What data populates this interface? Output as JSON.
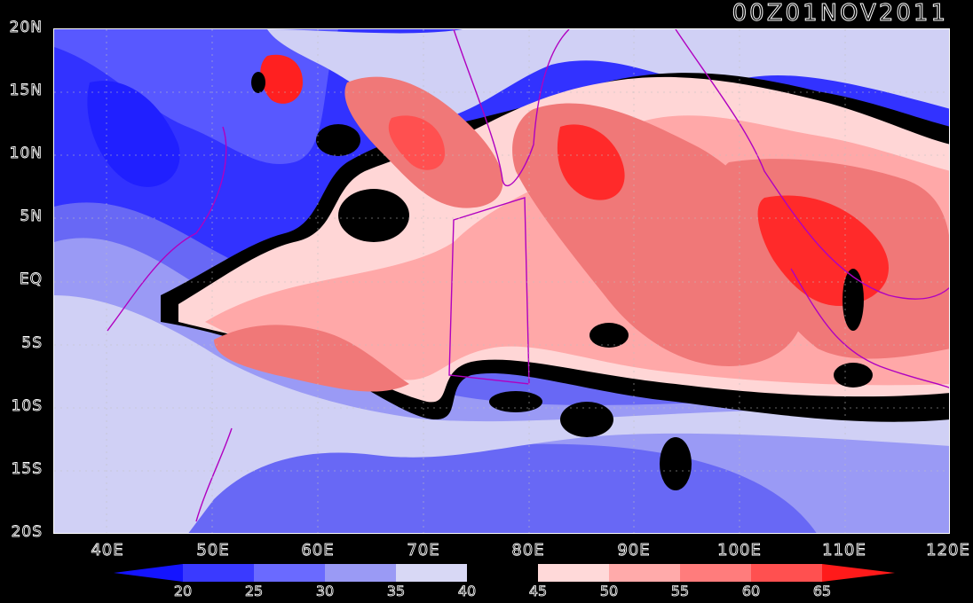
{
  "title": "00Z01NOV2011",
  "lat_labels": [
    "20N",
    "15N",
    "10N",
    "5N",
    "EQ",
    "5S",
    "10S",
    "15S",
    "20S"
  ],
  "lon_labels": [
    "40E",
    "50E",
    "60E",
    "70E",
    "80E",
    "90E",
    "100E",
    "110E",
    "120E"
  ],
  "colorbar": {
    "levels": [
      "20",
      "25",
      "30",
      "35",
      "40",
      "45",
      "50",
      "55",
      "60",
      "65"
    ],
    "colors": [
      "#1414ff",
      "#3a3aff",
      "#6a6aff",
      "#9a9af5",
      "#d8d8f5",
      "#000000",
      "#ffd9d9",
      "#ffaaaa",
      "#ff7c7c",
      "#ff5050",
      "#ff1a1a"
    ]
  },
  "map_colors": {
    "deep_blue": "#2a2aff",
    "blue": "#4e4eff",
    "light_blue": "#8a8af0",
    "pale_blue": "#d0d0f5",
    "black": "#000000",
    "pale_pink": "#ffd9d9",
    "pink": "#ffaaaa",
    "salmon": "#f57a7a",
    "red": "#ff3030",
    "coast": "#b000c0"
  }
}
